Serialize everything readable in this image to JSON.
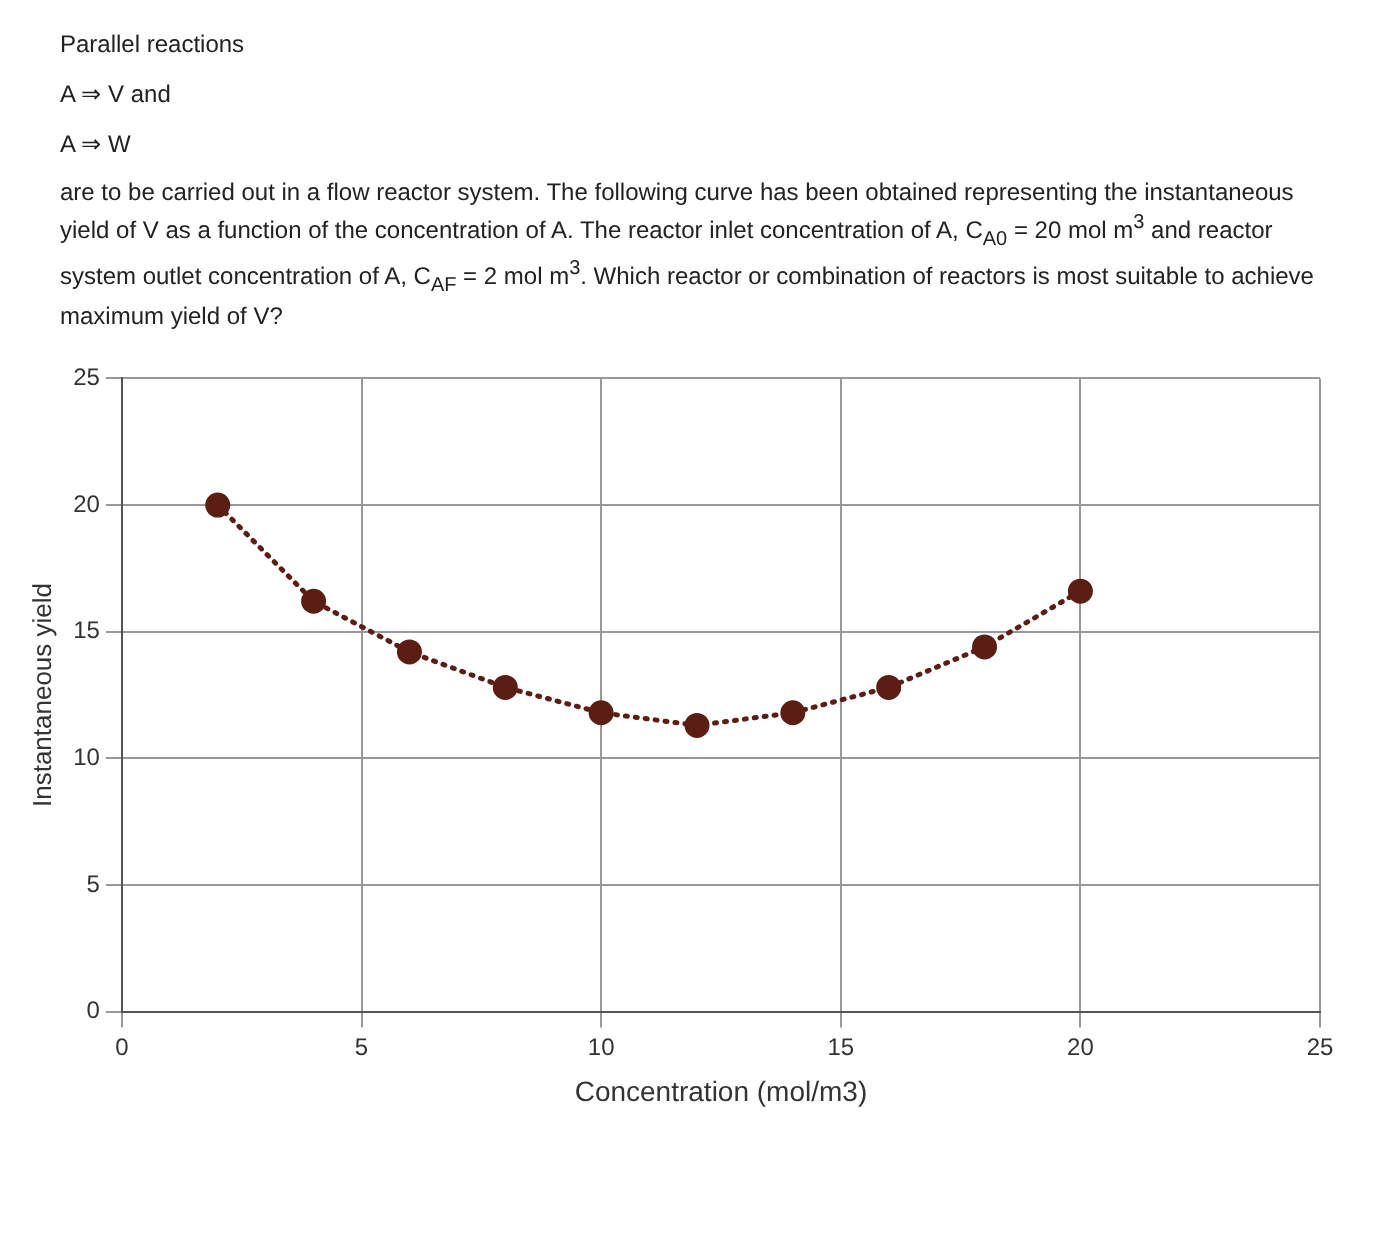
{
  "chart_data": {
    "type": "line",
    "title": "Parallel reactions",
    "annotations": [
      "A ⇒ V and",
      "A ⇒ W",
      "are to be carried out in a flow reactor system. The following curve has been obtained representing the instantaneous yield of V as a function of the concentration of A. The reactor inlet concentration of A, C$_{A0}$ = 20 mol m$^{3}$ and reactor system outlet concentration of A, C$_{AF}$ = 2 mol m$^{3}$. Which reactor or combination of reactors is most suitable to achieve maximum yield of V?"
    ],
    "xlabel": "Concentration (mol/m3)",
    "ylabel": "Instantaneous yield",
    "series": [
      {
        "color": "#5a1e14",
        "x": [
          2,
          4,
          6,
          8,
          10,
          12,
          14,
          16,
          18,
          20
        ],
        "values": [
          20,
          16.2,
          14.2,
          12.8,
          11.8,
          11.3,
          11.8,
          12.8,
          14.4,
          16.6
        ]
      }
    ],
    "xlim": [
      0,
      25
    ],
    "xticks": [
      0,
      5,
      10,
      15,
      20,
      25
    ],
    "ylim": [
      0,
      25
    ],
    "yticks": [
      0,
      5,
      10,
      15,
      20,
      25
    ],
    "grid": true,
    "legend": false,
    "marker": "circle",
    "line_style": "dotted"
  }
}
